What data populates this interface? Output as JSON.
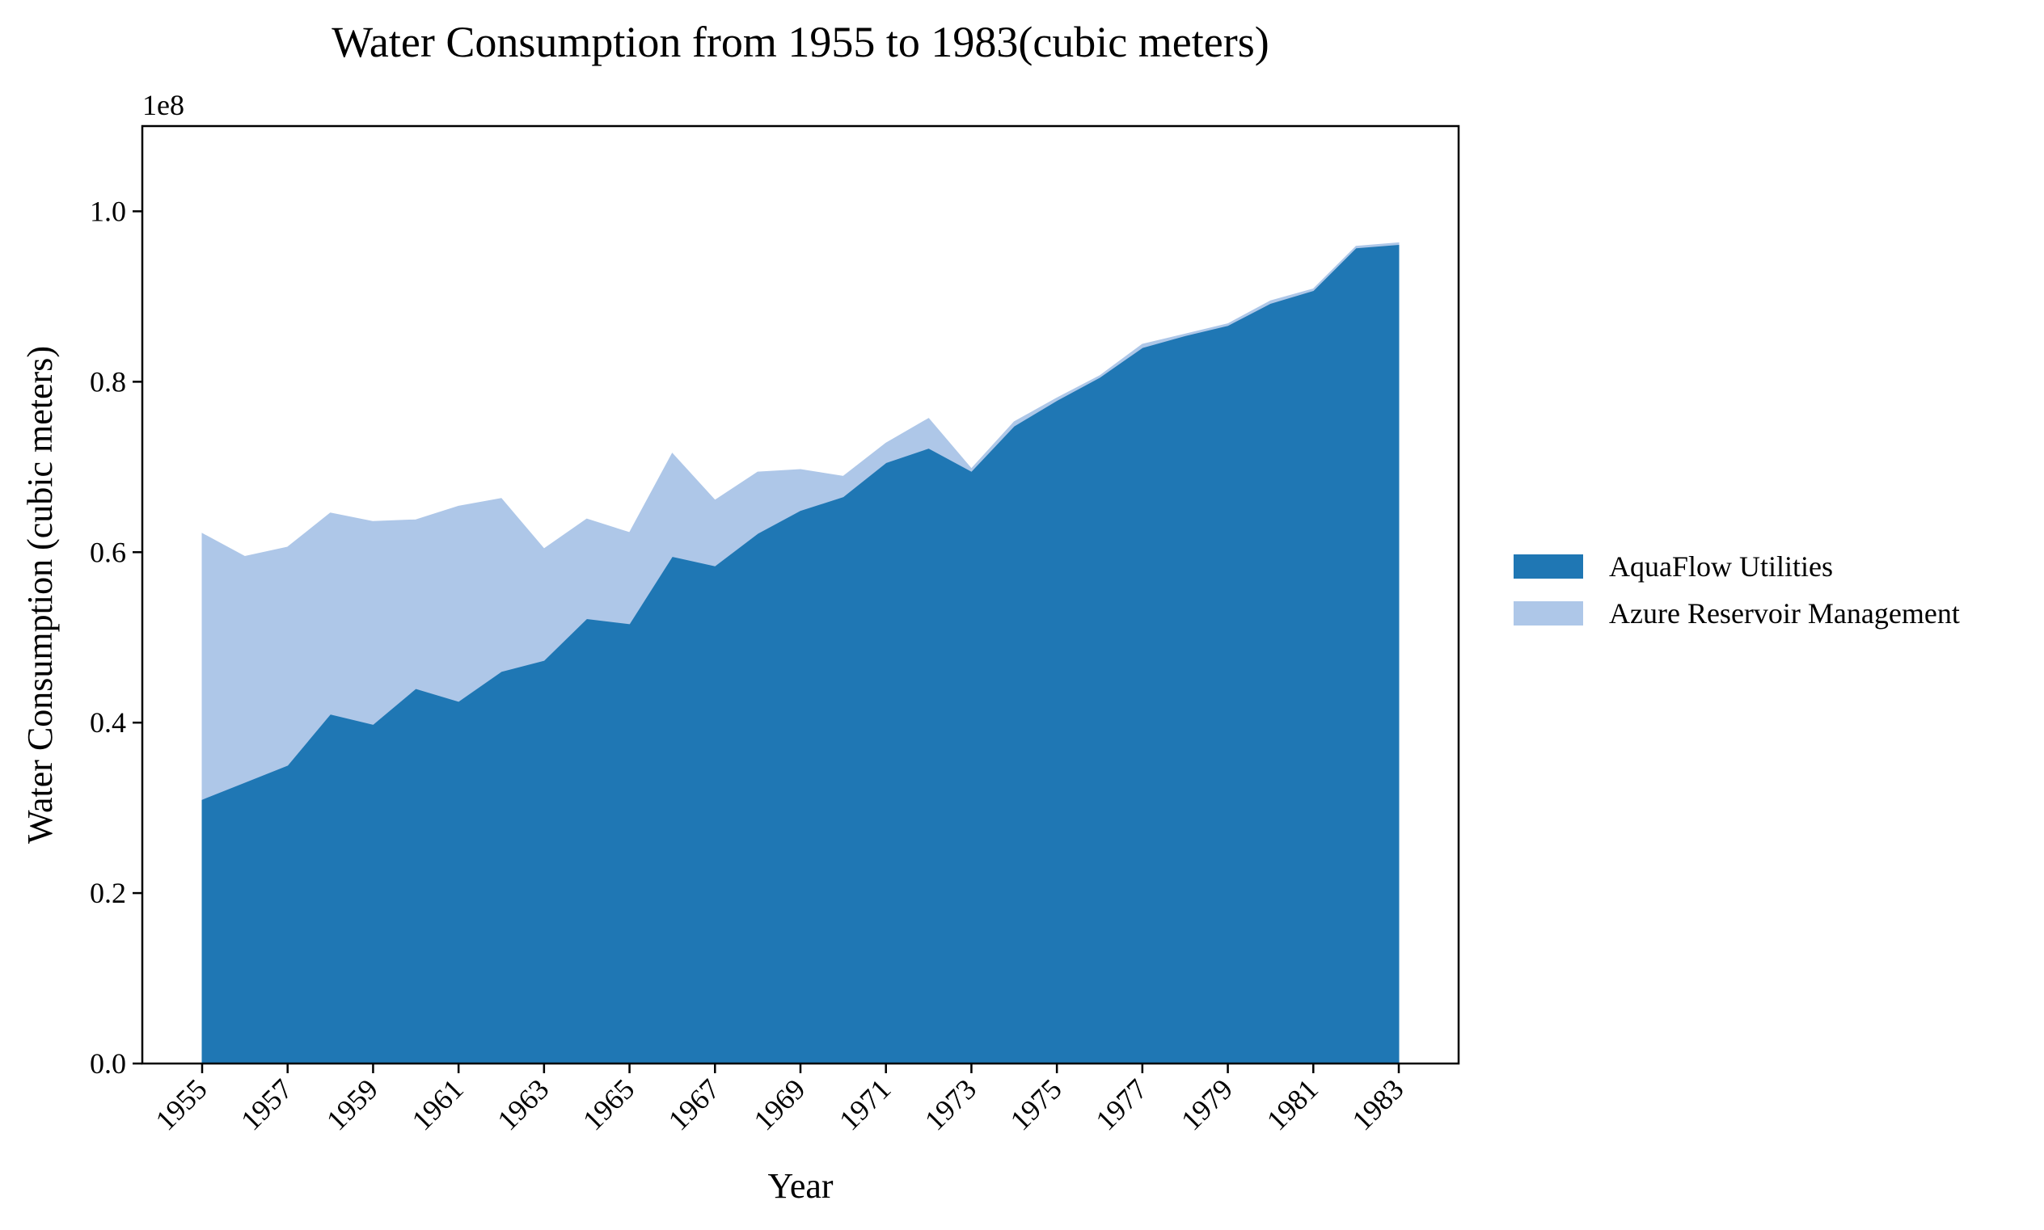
{
  "chart_data": {
    "type": "area",
    "stacked": true,
    "title": "Water Consumption from 1955 to 1983(cubic meters)",
    "xlabel": "Year",
    "ylabel": "Water Consumption (cubic meters)",
    "y_offset_label": "1e8",
    "ylim": [
      0,
      110000000
    ],
    "yticks": [
      0,
      20000000,
      40000000,
      60000000,
      80000000,
      100000000
    ],
    "ytick_labels": [
      "0.0",
      "0.2",
      "0.4",
      "0.6",
      "0.8",
      "1.0"
    ],
    "xlim": [
      1953.6,
      1984.4
    ],
    "xticks": [
      1955,
      1957,
      1959,
      1961,
      1963,
      1965,
      1967,
      1969,
      1971,
      1973,
      1975,
      1977,
      1979,
      1981,
      1983
    ],
    "xtick_labels": [
      "1955",
      "1957",
      "1959",
      "1961",
      "1963",
      "1965",
      "1967",
      "1969",
      "1971",
      "1973",
      "1975",
      "1977",
      "1979",
      "1981",
      "1983"
    ],
    "x": [
      1955,
      1956,
      1957,
      1958,
      1959,
      1960,
      1961,
      1962,
      1963,
      1964,
      1965,
      1966,
      1967,
      1968,
      1969,
      1970,
      1971,
      1972,
      1973,
      1974,
      1975,
      1976,
      1977,
      1978,
      1979,
      1980,
      1981,
      1982,
      1983
    ],
    "series": [
      {
        "name": "AquaFlow Utilities",
        "color": "#1f77b4",
        "values": [
          31000000,
          33000000,
          35000000,
          41000000,
          39800000,
          44000000,
          42500000,
          46000000,
          47300000,
          52200000,
          51600000,
          59500000,
          58400000,
          62200000,
          64900000,
          66500000,
          70500000,
          72200000,
          69500000,
          74800000,
          77800000,
          80500000,
          84000000,
          85400000,
          86600000,
          89200000,
          90700000,
          95700000,
          96100000
        ]
      },
      {
        "name": "Azure Reservoir Management",
        "color": "#aec7e8",
        "values": [
          31200000,
          26500000,
          25600000,
          23600000,
          23800000,
          19800000,
          22900000,
          20300000,
          13100000,
          11700000,
          10700000,
          12100000,
          7700000,
          7200000,
          4800000,
          2400000,
          2300000,
          3500000,
          300000,
          500000,
          300000,
          200000,
          400000,
          200000,
          200000,
          300000,
          200000,
          200000,
          200000
        ]
      }
    ],
    "legend_position": "center-right",
    "grid": false
  }
}
